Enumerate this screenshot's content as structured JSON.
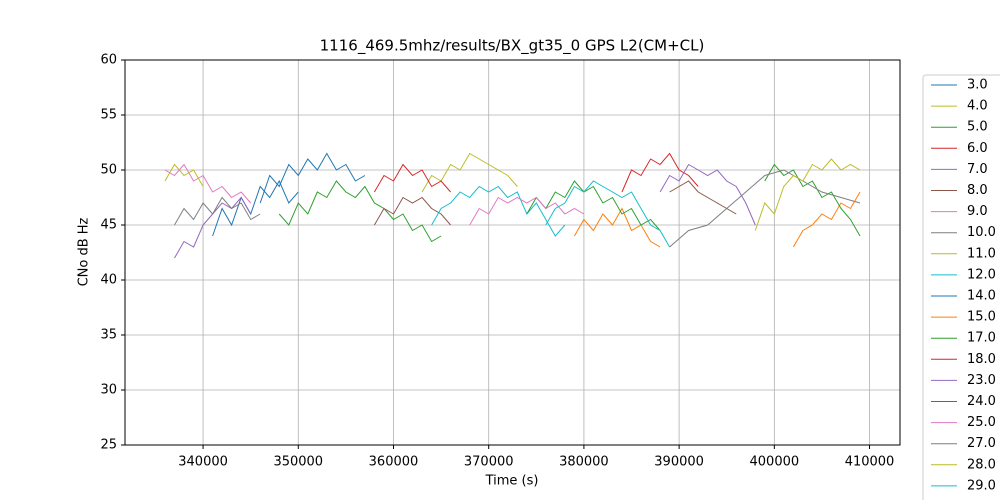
{
  "chart_data": {
    "type": "line",
    "title": "1116_469.5mhz/results/BX_gt35_0 GPS L2(CM+CL)",
    "x_label": "Time (s)",
    "y_label": "CNo dB Hz",
    "xlim": [
      331800,
      413200
    ],
    "ylim": [
      25,
      60
    ],
    "xticks": [
      340000,
      350000,
      360000,
      370000,
      380000,
      390000,
      400000,
      410000
    ],
    "yticks": [
      25,
      30,
      35,
      40,
      45,
      50,
      55,
      60
    ],
    "grid": true,
    "legend": "outside-right",
    "series": [
      {
        "name": "3.0",
        "color": "#1f77b4",
        "x": [
          341000,
          342000,
          343000,
          344000,
          345000,
          346000,
          347000,
          348000,
          349000,
          350000
        ],
        "values": [
          44,
          46.5,
          45,
          47.5,
          46,
          48.5,
          47.5,
          49,
          47,
          48
        ]
      },
      {
        "name": "4.0",
        "color": "#bcbd22",
        "x": [
          363000,
          364000,
          365000,
          366000,
          367000,
          368000,
          369000,
          370000,
          371000,
          372000,
          373000
        ],
        "values": [
          48,
          49.5,
          49,
          50.5,
          50,
          51.5,
          51,
          50.5,
          50,
          49.5,
          48.5
        ]
      },
      {
        "name": "5.0",
        "color": "#2ca02c",
        "x": [
          348000,
          349000,
          350000,
          351000,
          352000,
          353000,
          354000,
          355000,
          356000,
          357000,
          358000,
          359000,
          360000,
          361000,
          362000,
          363000,
          364000,
          365000
        ],
        "values": [
          46,
          45,
          47,
          46,
          48,
          47.5,
          49,
          48,
          47.5,
          48.5,
          47,
          46.5,
          45.5,
          46,
          44.5,
          45,
          43.5,
          44
        ]
      },
      {
        "name": "6.0",
        "color": "#d62728",
        "x": [
          358000,
          359000,
          360000,
          361000,
          362000,
          363000,
          364000,
          365000,
          366000
        ],
        "values": [
          48,
          49.5,
          49,
          50.5,
          49.5,
          50,
          48.5,
          49,
          48
        ]
      },
      {
        "name": "7.0",
        "color": "#9467bd",
        "x": [
          337000,
          338000,
          339000,
          340000,
          341000,
          342000,
          343000,
          344000,
          345000
        ],
        "values": [
          42,
          43.5,
          43,
          45,
          46,
          47,
          46.5,
          47.5,
          46
        ]
      },
      {
        "name": "8.0",
        "color": "#8c564b",
        "x": [
          358000,
          359000,
          360000,
          361000,
          362000,
          363000,
          364000,
          365000,
          366000
        ],
        "values": [
          45,
          46.5,
          46,
          47.5,
          47,
          47.5,
          46.5,
          46,
          45
        ]
      },
      {
        "name": "9.0",
        "color": "#e377c2",
        "x": [
          336000,
          337000,
          338000,
          339000,
          340000,
          341000,
          342000,
          343000,
          344000,
          345000
        ],
        "values": [
          50,
          49.5,
          50.5,
          49,
          49.5,
          48,
          48.5,
          47.5,
          48,
          47
        ]
      },
      {
        "name": "10.0",
        "color": "#7f7f7f",
        "x": [
          337000,
          338000,
          339000,
          340000,
          341000,
          342000,
          343000,
          344000,
          345000,
          346000
        ],
        "values": [
          45,
          46.5,
          45.5,
          47,
          46,
          47.5,
          46.5,
          47,
          45.5,
          46
        ]
      },
      {
        "name": "11.0",
        "color": "#bcbd22",
        "x": [
          336000,
          337000,
          338000,
          339000,
          340000
        ],
        "values": [
          49,
          50.5,
          49.5,
          50,
          48.5
        ]
      },
      {
        "name": "12.0",
        "color": "#17becf",
        "x": [
          364000,
          365000,
          366000,
          367000,
          368000,
          369000,
          370000,
          371000,
          372000,
          373000,
          374000,
          375000,
          376000,
          377000,
          378000
        ],
        "values": [
          45,
          46.5,
          47,
          48,
          47.5,
          48.5,
          48,
          48.5,
          47.5,
          48,
          46,
          47,
          45.5,
          44,
          45
        ]
      },
      {
        "name": "14.0",
        "color": "#1f77b4",
        "x": [
          346000,
          347000,
          348000,
          349000,
          350000,
          351000,
          352000,
          353000,
          354000,
          355000,
          356000,
          357000
        ],
        "values": [
          47,
          49.5,
          48.5,
          50.5,
          49.5,
          51,
          50,
          51.5,
          50,
          50.5,
          49,
          49.5
        ]
      },
      {
        "name": "15.0",
        "color": "#ff7f0e",
        "x": [
          379000,
          380000,
          381000,
          382000,
          383000,
          384000,
          385000,
          386000,
          387000,
          388000,
          395000,
          402000,
          403000,
          404000,
          405000,
          406000,
          407000,
          408000,
          409000
        ],
        "values": [
          44,
          45.5,
          44.5,
          46,
          45,
          46.5,
          44.5,
          45,
          43.5,
          43,
          null,
          43,
          44.5,
          45,
          46,
          45.5,
          47,
          46.5,
          48
        ]
      },
      {
        "name": "17.0",
        "color": "#2ca02c",
        "x": [
          374000,
          375000,
          376000,
          377000,
          378000,
          379000,
          380000,
          381000,
          382000,
          383000,
          384000,
          385000,
          386000,
          387000,
          388000,
          396000,
          399000,
          400000,
          401000,
          402000,
          403000,
          404000,
          405000,
          406000,
          407000,
          408000,
          409000
        ],
        "values": [
          46,
          47.5,
          46.5,
          48,
          47.5,
          49,
          48,
          48.5,
          47,
          47.5,
          46,
          46.5,
          45,
          45.5,
          44.5,
          null,
          49,
          50.5,
          49.5,
          50,
          48.5,
          49,
          47.5,
          48,
          46.5,
          45.5,
          44
        ]
      },
      {
        "name": "18.0",
        "color": "#d62728",
        "x": [
          384000,
          385000,
          386000,
          387000,
          388000,
          389000,
          390000,
          391000,
          392000
        ],
        "values": [
          48,
          50,
          49.5,
          51,
          50.5,
          51.5,
          50,
          49.5,
          48.5
        ]
      },
      {
        "name": "23.0",
        "color": "#9467bd",
        "x": [
          388000,
          389000,
          390000,
          391000,
          392000,
          393000,
          394000,
          395000,
          396000,
          397000,
          398000
        ],
        "values": [
          48,
          49.5,
          49,
          50.5,
          50,
          49.5,
          50,
          49,
          48.5,
          47,
          45
        ]
      },
      {
        "name": "24.0",
        "color": "#8c564b",
        "x": [
          389000,
          390000,
          391000,
          392000,
          393000,
          394000,
          395000,
          396000
        ],
        "values": [
          48,
          48.5,
          49,
          48,
          47.5,
          47,
          46.5,
          46
        ]
      },
      {
        "name": "25.0",
        "color": "#e377c2",
        "x": [
          368000,
          369000,
          370000,
          371000,
          372000,
          373000,
          374000,
          375000,
          376000,
          377000,
          378000,
          379000,
          380000
        ],
        "values": [
          45,
          46.5,
          46,
          47.5,
          47,
          47.5,
          47,
          47.5,
          46.5,
          47,
          46,
          46.5,
          46
        ]
      },
      {
        "name": "27.0",
        "color": "#7f7f7f",
        "x": [
          389000,
          391000,
          393000,
          395000,
          397000,
          399000,
          401000,
          403000,
          405000,
          407000,
          409000
        ],
        "values": [
          43,
          44.5,
          45,
          46.5,
          48,
          49.5,
          50,
          49,
          48,
          47.5,
          47
        ]
      },
      {
        "name": "28.0",
        "color": "#bcbd22",
        "x": [
          398000,
          399000,
          400000,
          401000,
          402000,
          403000,
          404000,
          405000,
          406000,
          407000,
          408000,
          409000
        ],
        "values": [
          44.5,
          47,
          46,
          48.5,
          49.5,
          49,
          50.5,
          50,
          51,
          50,
          50.5,
          50
        ]
      },
      {
        "name": "29.0",
        "color": "#17becf",
        "x": [
          376000,
          377000,
          378000,
          379000,
          380000,
          381000,
          382000,
          383000,
          384000,
          385000,
          386000,
          387000,
          388000,
          389000
        ],
        "values": [
          45,
          46.5,
          47,
          48.5,
          48,
          49,
          48.5,
          48,
          47.5,
          48,
          46.5,
          45,
          44.5,
          43
        ]
      }
    ]
  }
}
